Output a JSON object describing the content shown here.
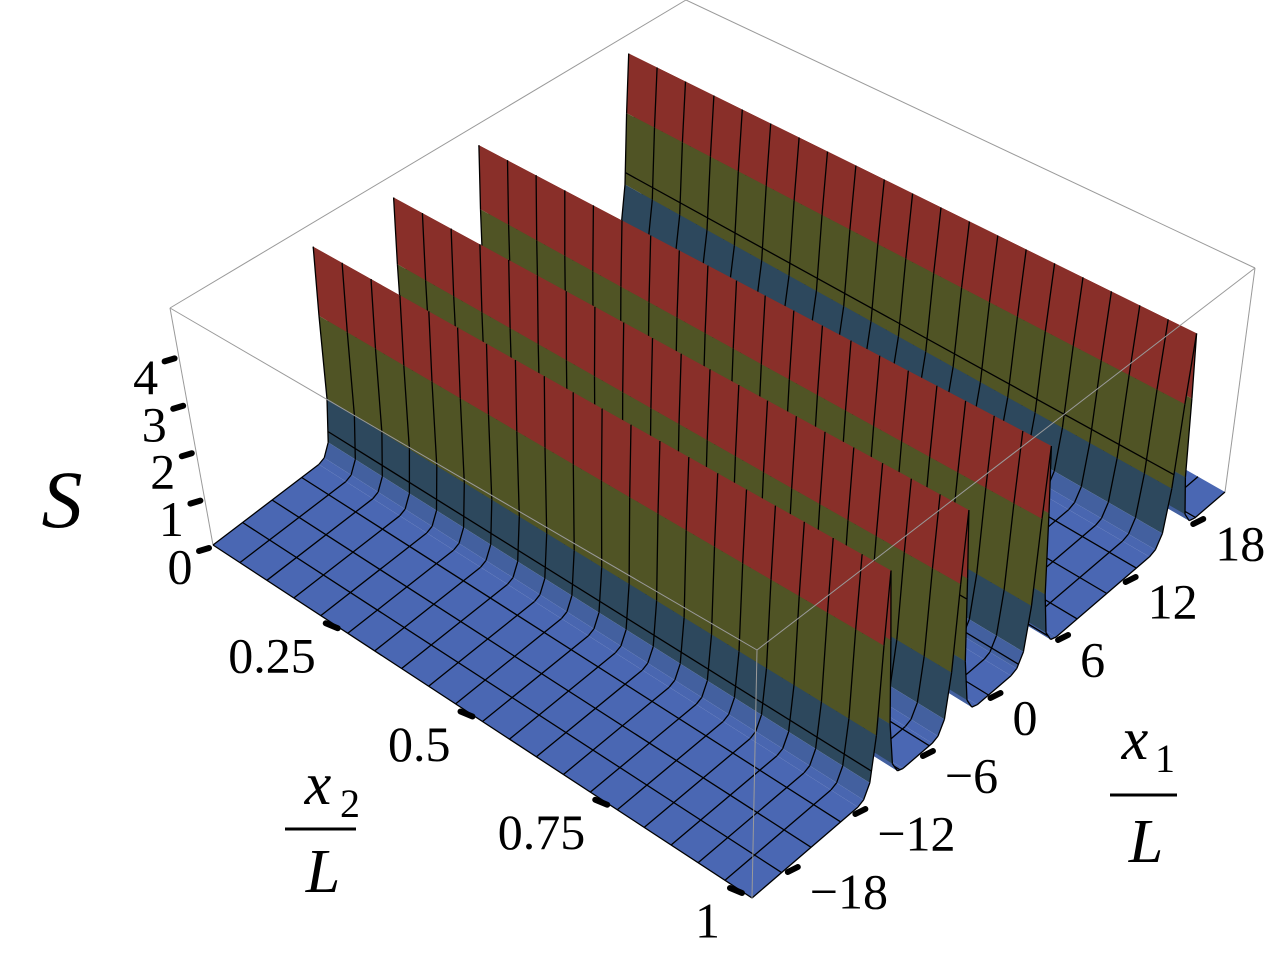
{
  "chart_data": {
    "type": "surface",
    "z_label": "S",
    "x1_label": {
      "numerator": "x",
      "subscript": "1",
      "denominator": "L"
    },
    "x2_label": {
      "numerator": "x",
      "subscript": "2",
      "denominator": "L"
    },
    "x1": [
      -21,
      -11.6,
      -11.1,
      -10.6,
      -10.2,
      -9.9,
      -9.6,
      -9.3,
      -9,
      -8.6,
      -8.1,
      -7.6,
      -5,
      -4.5,
      -4,
      -3.6,
      -3.3,
      -3,
      -2.7,
      -2.4,
      -2,
      -1.5,
      -1,
      2,
      2.5,
      3,
      3.4,
      3.7,
      4,
      4.3,
      4.6,
      5,
      5.5,
      6,
      14.3,
      14.8,
      15.3,
      15.7,
      16,
      16.3,
      16.6,
      16.9,
      17.3,
      17.8,
      18.3,
      21
    ],
    "values": [
      0,
      0,
      0.05,
      0.3,
      1.2,
      3,
      4.5,
      3,
      1.2,
      0.3,
      0.05,
      0,
      0,
      0.05,
      0.3,
      1.2,
      3,
      4.5,
      3,
      1.2,
      0.3,
      0.05,
      0,
      0,
      0.05,
      0.3,
      1.2,
      3,
      4.5,
      3,
      1.2,
      0.3,
      0.05,
      0,
      0,
      0.05,
      0.3,
      1.2,
      3,
      4.5,
      3,
      1.2,
      0.3,
      0.05,
      0,
      0
    ],
    "x1lim": [
      -21,
      21
    ],
    "x2lim": [
      0,
      1
    ],
    "zlim": [
      0,
      5
    ],
    "x1ticks": [
      {
        "value": -18,
        "label": "−18"
      },
      {
        "value": -12,
        "label": "−12"
      },
      {
        "value": -6,
        "label": "−6"
      },
      0,
      6,
      12,
      18
    ],
    "x2ticks": [
      0.25,
      0.5,
      0.75,
      1
    ],
    "zticks": [
      0,
      1,
      2,
      3,
      4
    ],
    "colormap": [
      "#4a67b3",
      "#1f3832",
      "#585823",
      "#6c1f1a",
      "#c25048"
    ]
  }
}
